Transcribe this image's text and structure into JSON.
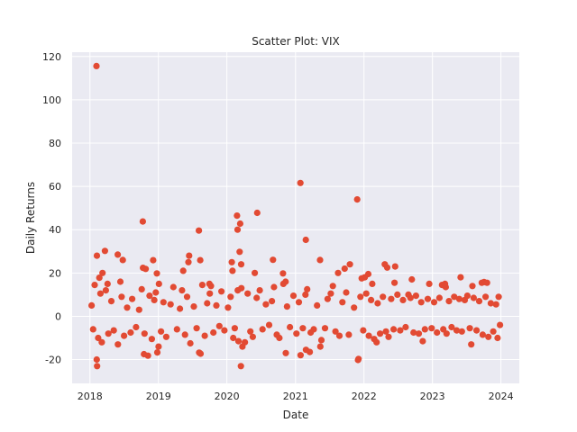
{
  "chart_data": {
    "type": "scatter",
    "title": "Scatter Plot: VIX",
    "xlabel": "Date",
    "ylabel": "Daily Returns",
    "xlim": [
      "2017-09-28",
      "2024-04-08"
    ],
    "ylim": [
      -31,
      122
    ],
    "x_ticks": [
      "2018",
      "2019",
      "2020",
      "2021",
      "2022",
      "2023",
      "2024"
    ],
    "y_ticks": [
      -20,
      0,
      20,
      40,
      60,
      80,
      100,
      120
    ],
    "grid": true,
    "marker_color": "#E24A33",
    "background_color": "#EAEAF2",
    "series": [
      {
        "points": [
          [
            "2018-02-05",
            115.6
          ],
          [
            "2018-02-06",
            -20.0
          ],
          [
            "2018-02-08",
            -23.0
          ],
          [
            "2018-02-07",
            28.0
          ],
          [
            "2018-01-26",
            14.5
          ],
          [
            "2018-03-22",
            30.2
          ],
          [
            "2018-02-20",
            17.8
          ],
          [
            "2018-03-09",
            20.0
          ],
          [
            "2018-04-05",
            15.0
          ],
          [
            "2018-05-29",
            28.5
          ],
          [
            "2018-06-25",
            26.0
          ],
          [
            "2018-06-12",
            16.0
          ],
          [
            "2018-10-10",
            43.8
          ],
          [
            "2018-10-25",
            21.9
          ],
          [
            "2018-10-11",
            22.4
          ],
          [
            "2018-12-04",
            25.9
          ],
          [
            "2018-12-24",
            19.8
          ],
          [
            "2018-12-26",
            -16.7
          ],
          [
            "2018-10-16",
            -17.5
          ],
          [
            "2018-11-06",
            -18.2
          ],
          [
            "2019-01-04",
            15.0
          ],
          [
            "2019-01-02",
            -14.0
          ],
          [
            "2019-05-13",
            21.0
          ],
          [
            "2019-06-14",
            28.0
          ],
          [
            "2019-06-10",
            25.0
          ],
          [
            "2019-08-05",
            39.6
          ],
          [
            "2019-08-12",
            25.9
          ],
          [
            "2019-08-06",
            -16.8
          ],
          [
            "2019-08-14",
            -17.3
          ],
          [
            "2019-09-30",
            15.0
          ],
          [
            "2019-10-08",
            14.0
          ],
          [
            "2020-01-31",
            21.0
          ],
          [
            "2020-01-27",
            25.0
          ],
          [
            "2020-02-24",
            46.5
          ],
          [
            "2020-02-27",
            40.0
          ],
          [
            "2020-03-09",
            29.8
          ],
          [
            "2020-03-12",
            42.8
          ],
          [
            "2020-03-16",
            -23.0
          ],
          [
            "2020-03-17",
            24.0
          ],
          [
            "2020-06-11",
            47.8
          ],
          [
            "2020-05-29",
            20.0
          ],
          [
            "2020-09-03",
            26.1
          ],
          [
            "2020-10-26",
            19.8
          ],
          [
            "2020-11-09",
            16.0
          ],
          [
            "2020-11-10",
            -17.0
          ],
          [
            "2021-01-27",
            61.6
          ],
          [
            "2021-02-25",
            35.3
          ],
          [
            "2021-05-12",
            26.0
          ],
          [
            "2021-09-20",
            22.0
          ],
          [
            "2021-10-18",
            24.0
          ],
          [
            "2021-11-26",
            54.0
          ],
          [
            "2021-11-30",
            -20.2
          ],
          [
            "2021-12-03",
            -19.7
          ],
          [
            "2021-12-20",
            17.5
          ],
          [
            "2021-01-28",
            -18.0
          ],
          [
            "2021-02-26",
            -15.5
          ],
          [
            "2021-03-18",
            -16.5
          ],
          [
            "2021-05-13",
            -14.0
          ],
          [
            "2021-08-16",
            20.0
          ],
          [
            "2022-01-05",
            18.0
          ],
          [
            "2022-01-24",
            19.5
          ],
          [
            "2022-02-14",
            15.0
          ],
          [
            "2022-04-22",
            24.0
          ],
          [
            "2022-05-05",
            22.5
          ],
          [
            "2022-06-16",
            23.0
          ],
          [
            "2022-06-13",
            15.5
          ],
          [
            "2022-03-09",
            -12.0
          ],
          [
            "2022-09-13",
            17.0
          ],
          [
            "2022-12-15",
            15.0
          ],
          [
            "2022-11-10",
            -11.5
          ],
          [
            "2023-02-21",
            14.5
          ],
          [
            "2023-03-09",
            15.0
          ],
          [
            "2023-03-13",
            13.5
          ],
          [
            "2023-05-31",
            18.0
          ],
          [
            "2023-08-02",
            14.0
          ],
          [
            "2023-09-21",
            15.5
          ],
          [
            "2023-10-03",
            15.8
          ],
          [
            "2023-10-19",
            15.5
          ],
          [
            "2023-07-27",
            -13.0
          ],
          [
            "2023-12-20",
            9.0
          ],
          [
            "2023-12-14",
            -10.0
          ],
          [
            "2022-08-26",
            10.0
          ],
          [
            "2018-01-10",
            5.0
          ],
          [
            "2018-01-18",
            -6.0
          ],
          [
            "2018-02-14",
            -10.0
          ],
          [
            "2018-02-26",
            10.5
          ],
          [
            "2018-03-05",
            -12.0
          ],
          [
            "2018-03-27",
            12.0
          ],
          [
            "2018-04-09",
            -8.0
          ],
          [
            "2018-04-25",
            7.0
          ],
          [
            "2018-05-08",
            -6.5
          ],
          [
            "2018-05-30",
            -13.0
          ],
          [
            "2018-06-19",
            9.0
          ],
          [
            "2018-07-02",
            -9.0
          ],
          [
            "2018-07-18",
            4.0
          ],
          [
            "2018-08-06",
            -7.5
          ],
          [
            "2018-08-14",
            8.0
          ],
          [
            "2018-09-04",
            -5.0
          ],
          [
            "2018-09-20",
            3.0
          ],
          [
            "2018-10-04",
            12.5
          ],
          [
            "2018-10-19",
            -8.0
          ],
          [
            "2018-11-15",
            9.5
          ],
          [
            "2018-11-27",
            -10.5
          ],
          [
            "2018-12-10",
            7.5
          ],
          [
            "2018-12-18",
            11.0
          ],
          [
            "2019-01-15",
            -7.0
          ],
          [
            "2019-01-28",
            6.5
          ],
          [
            "2019-02-12",
            -9.5
          ],
          [
            "2019-03-07",
            5.5
          ],
          [
            "2019-03-22",
            13.5
          ],
          [
            "2019-04-10",
            -6.0
          ],
          [
            "2019-04-26",
            3.5
          ],
          [
            "2019-05-07",
            12.0
          ],
          [
            "2019-05-23",
            -8.5
          ],
          [
            "2019-06-03",
            9.0
          ],
          [
            "2019-06-20",
            -12.5
          ],
          [
            "2019-07-09",
            4.5
          ],
          [
            "2019-07-24",
            -5.5
          ],
          [
            "2019-08-23",
            14.5
          ],
          [
            "2019-09-05",
            -9.0
          ],
          [
            "2019-09-18",
            6.0
          ],
          [
            "2019-10-02",
            10.5
          ],
          [
            "2019-10-21",
            -7.5
          ],
          [
            "2019-11-06",
            5.0
          ],
          [
            "2019-11-22",
            -4.5
          ],
          [
            "2019-12-03",
            11.5
          ],
          [
            "2019-12-19",
            -6.5
          ],
          [
            "2020-01-07",
            4.0
          ],
          [
            "2020-01-21",
            9.0
          ],
          [
            "2020-02-04",
            -10.0
          ],
          [
            "2020-02-12",
            -5.5
          ],
          [
            "2020-02-28",
            12.0
          ],
          [
            "2020-03-03",
            -11.5
          ],
          [
            "2020-03-18",
            13.0
          ],
          [
            "2020-03-24",
            -14.0
          ],
          [
            "2020-04-06",
            -12.0
          ],
          [
            "2020-04-21",
            10.5
          ],
          [
            "2020-05-05",
            -7.0
          ],
          [
            "2020-05-18",
            -9.5
          ],
          [
            "2020-06-08",
            8.5
          ],
          [
            "2020-06-24",
            12.0
          ],
          [
            "2020-07-09",
            -6.0
          ],
          [
            "2020-07-27",
            5.5
          ],
          [
            "2020-08-13",
            -4.0
          ],
          [
            "2020-08-28",
            7.0
          ],
          [
            "2020-09-08",
            13.5
          ],
          [
            "2020-09-23",
            -8.5
          ],
          [
            "2020-10-07",
            -10.0
          ],
          [
            "2020-10-28",
            15.0
          ],
          [
            "2020-11-17",
            4.5
          ],
          [
            "2020-12-02",
            -5.0
          ],
          [
            "2020-12-21",
            9.5
          ],
          [
            "2021-01-06",
            -8.0
          ],
          [
            "2021-01-19",
            6.5
          ],
          [
            "2021-02-09",
            -5.5
          ],
          [
            "2021-02-23",
            10.0
          ],
          [
            "2021-03-04",
            12.5
          ],
          [
            "2021-03-23",
            -7.5
          ],
          [
            "2021-04-08",
            -6.0
          ],
          [
            "2021-04-26",
            5.0
          ],
          [
            "2021-05-19",
            -11.0
          ],
          [
            "2021-06-07",
            -5.5
          ],
          [
            "2021-06-21",
            8.0
          ],
          [
            "2021-07-08",
            10.5
          ],
          [
            "2021-07-19",
            14.0
          ],
          [
            "2021-08-02",
            -7.0
          ],
          [
            "2021-08-23",
            -9.0
          ],
          [
            "2021-09-08",
            6.5
          ],
          [
            "2021-09-28",
            11.0
          ],
          [
            "2021-10-12",
            -8.5
          ],
          [
            "2021-11-09",
            4.0
          ],
          [
            "2021-12-13",
            9.0
          ],
          [
            "2021-12-28",
            -6.5
          ],
          [
            "2022-01-13",
            10.5
          ],
          [
            "2022-01-27",
            -9.0
          ],
          [
            "2022-02-08",
            7.5
          ],
          [
            "2022-02-24",
            -10.5
          ],
          [
            "2022-03-15",
            6.0
          ],
          [
            "2022-03-28",
            -8.0
          ],
          [
            "2022-04-12",
            9.0
          ],
          [
            "2022-04-28",
            -7.0
          ],
          [
            "2022-05-12",
            -9.5
          ],
          [
            "2022-05-26",
            8.0
          ],
          [
            "2022-06-08",
            -6.0
          ],
          [
            "2022-06-28",
            10.0
          ],
          [
            "2022-07-13",
            -6.5
          ],
          [
            "2022-07-28",
            7.5
          ],
          [
            "2022-08-11",
            -5.0
          ],
          [
            "2022-09-06",
            8.5
          ],
          [
            "2022-09-22",
            -7.5
          ],
          [
            "2022-10-05",
            9.5
          ],
          [
            "2022-10-20",
            -8.0
          ],
          [
            "2022-11-02",
            6.5
          ],
          [
            "2022-11-22",
            -6.0
          ],
          [
            "2022-12-07",
            8.0
          ],
          [
            "2022-12-28",
            -5.5
          ],
          [
            "2023-01-10",
            6.5
          ],
          [
            "2023-01-25",
            -7.5
          ],
          [
            "2023-02-07",
            8.5
          ],
          [
            "2023-02-28",
            -6.0
          ],
          [
            "2023-03-17",
            -8.0
          ],
          [
            "2023-03-30",
            7.0
          ],
          [
            "2023-04-13",
            -5.0
          ],
          [
            "2023-04-27",
            9.0
          ],
          [
            "2023-05-10",
            -6.5
          ],
          [
            "2023-05-24",
            8.0
          ],
          [
            "2023-06-07",
            -7.0
          ],
          [
            "2023-06-22",
            7.5
          ],
          [
            "2023-07-06",
            9.5
          ],
          [
            "2023-07-19",
            -5.5
          ],
          [
            "2023-08-09",
            8.5
          ],
          [
            "2023-08-24",
            -6.5
          ],
          [
            "2023-09-07",
            7.0
          ],
          [
            "2023-09-26",
            -8.5
          ],
          [
            "2023-10-11",
            9.0
          ],
          [
            "2023-10-26",
            -9.5
          ],
          [
            "2023-11-08",
            6.0
          ],
          [
            "2023-11-21",
            -7.0
          ],
          [
            "2023-12-06",
            5.5
          ],
          [
            "2023-12-27",
            -4.0
          ]
        ]
      }
    ]
  }
}
